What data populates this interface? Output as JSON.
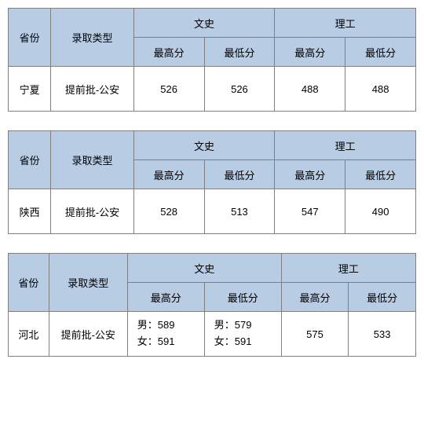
{
  "headers": {
    "province": "省份",
    "type": "录取类型",
    "liberal": "文史",
    "science": "理工",
    "max": "最高分",
    "min": "最低分"
  },
  "header_bg": "#b8cce4",
  "border_color": "#808080",
  "tables": [
    {
      "province": "宁夏",
      "type": "提前批-公安",
      "liberal_max": "526",
      "liberal_min": "526",
      "science_max": "488",
      "science_min": "488",
      "multi": false
    },
    {
      "province": "陕西",
      "type": "提前批-公安",
      "liberal_max": "528",
      "liberal_min": "513",
      "science_max": "547",
      "science_min": "490",
      "multi": false
    },
    {
      "province": "河北",
      "type": "提前批-公安",
      "liberal_max_m": "男：589",
      "liberal_max_f": "女：591",
      "liberal_min_m": "男：579",
      "liberal_min_f": "女：591",
      "science_max": "575",
      "science_min": "533",
      "multi": true
    }
  ]
}
